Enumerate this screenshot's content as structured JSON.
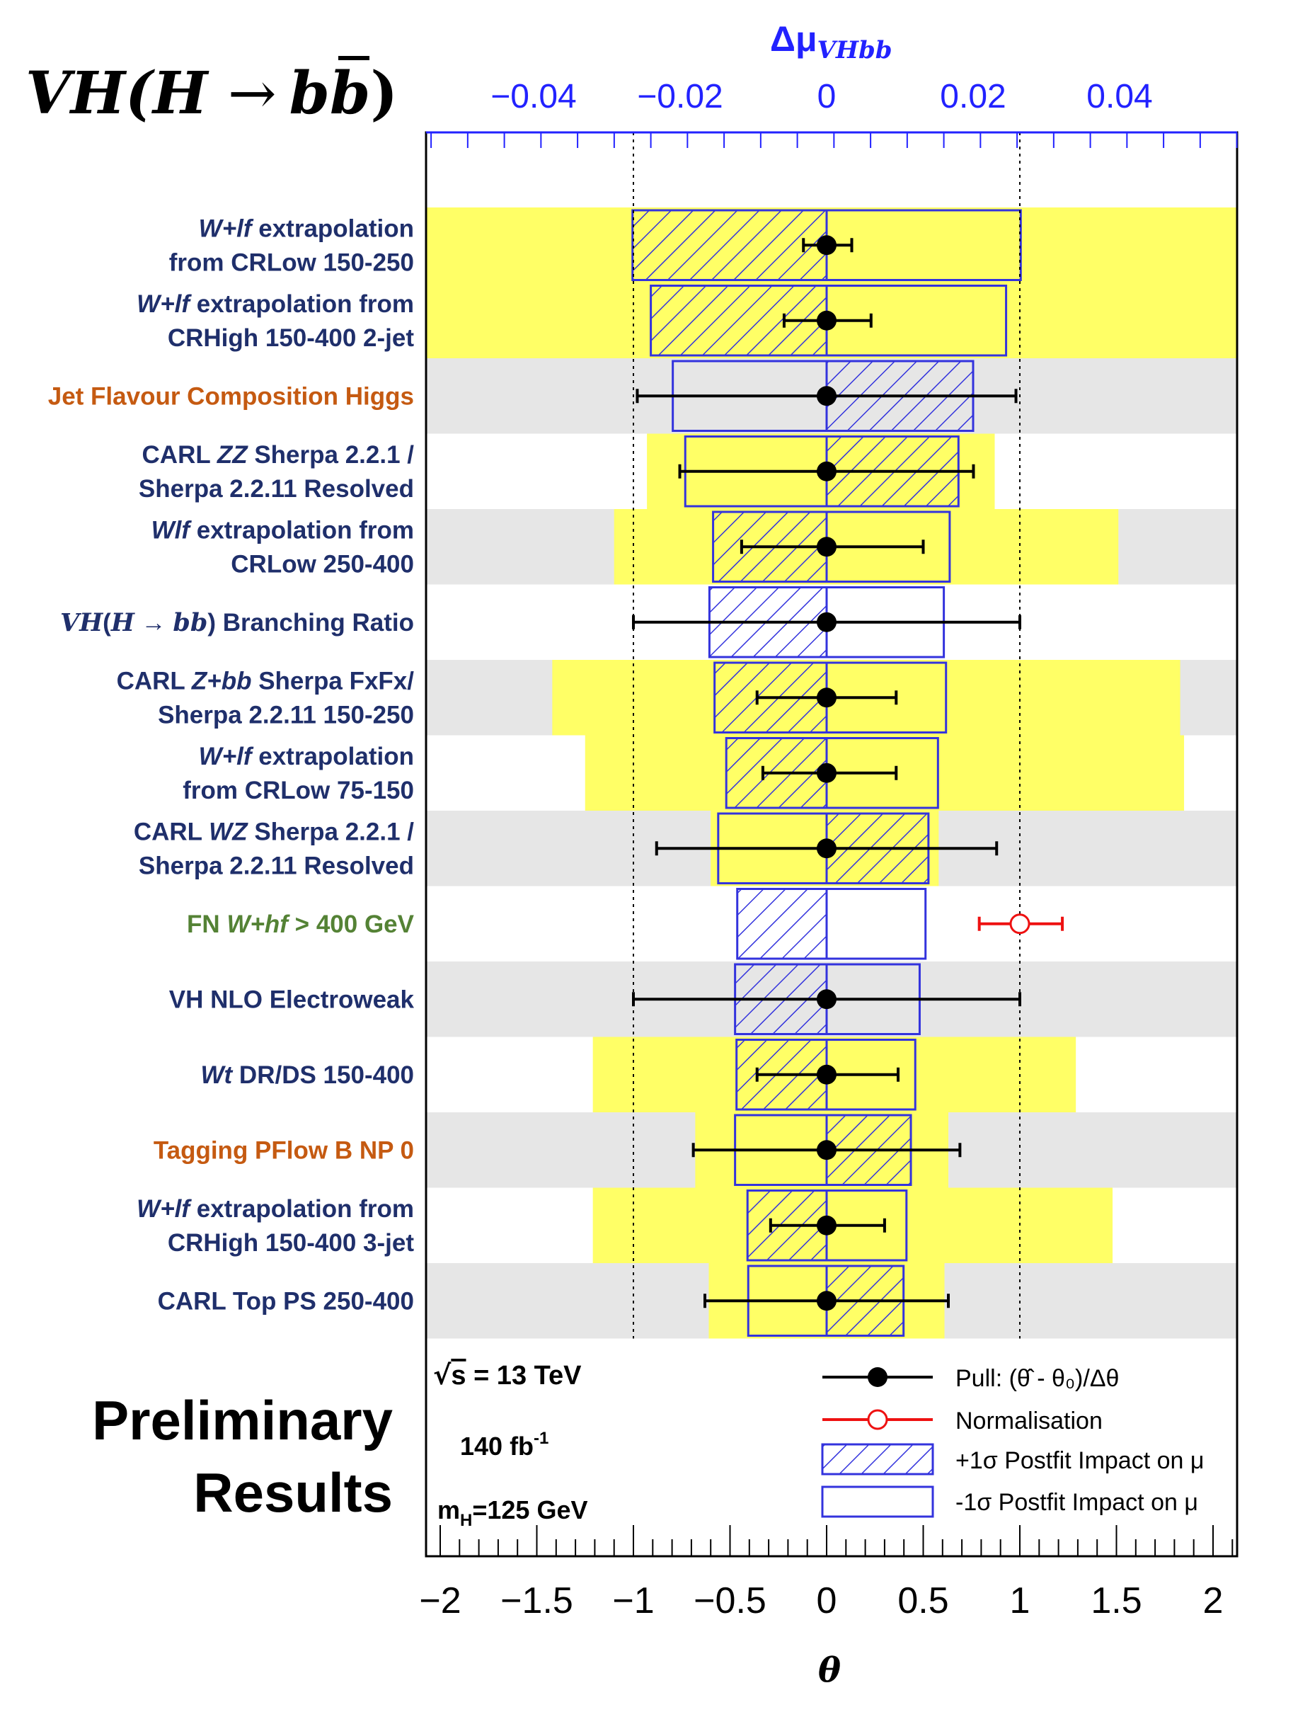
{
  "header": {
    "title_main": "VH(H ",
    "title_arrow": "→",
    "title_b1": "b",
    "title_b2": "b",
    "title_close": ")"
  },
  "footer_left": {
    "line1": "Preliminary",
    "line2": "Results"
  },
  "info": {
    "sqrt_s": "= 13 TeV",
    "lumi": "140  fb",
    "lumi_exp": "-1",
    "mass": "=125 GeV",
    "mass_prefix": "m",
    "mass_sub": "H"
  },
  "legend": [
    {
      "key": "pull",
      "label": "Pull: (θ̂ - θ₀)/Δθ"
    },
    {
      "key": "norm",
      "label": "Normalisation"
    },
    {
      "key": "plus",
      "label": "+1σ Postfit Impact on μ"
    },
    {
      "key": "minus",
      "label": "-1σ Postfit Impact on μ"
    }
  ],
  "colors": {
    "band_yellow": "#ffff66",
    "band_gray": "#e6e6e6",
    "box_blue": "#3333dd",
    "axis_top": "#2222ff",
    "pull_black": "#000000",
    "norm_red": "#ee1111",
    "label_navy": "#1f2f6b",
    "label_orange": "#c55a11",
    "label_green": "#548235"
  },
  "chart_data": {
    "type": "ranking",
    "xlabel": "θ",
    "top_axis_label": "Δμ",
    "top_axis_label_sub": "VHbb",
    "xlim": [
      -2.0,
      2.1
    ],
    "top_xlim": [
      -0.0544,
      0.0571
    ],
    "x_ticks": [
      -2,
      -1.5,
      -1,
      -0.5,
      0,
      0.5,
      1,
      1.5,
      2
    ],
    "x_tick_labels": [
      "−2",
      "−1.5",
      "−1",
      "−0.5",
      "0",
      "0.5",
      "1",
      "1.5",
      "2"
    ],
    "top_ticks": [
      -0.04,
      -0.02,
      0,
      0.02,
      0.04
    ],
    "top_tick_labels": [
      "−0.04",
      "−0.02",
      "0",
      "0.02",
      "0.04"
    ],
    "reference_lines": [
      -1,
      1
    ],
    "rows": [
      {
        "label": [
          "<i>W+lf</i> extrapolation",
          "from CRLow 150-250"
        ],
        "color": "navy",
        "band": "yellow",
        "constraint": [
          -2.2,
          2.2
        ],
        "pull": 0.0,
        "pull_err": [
          -0.12,
          0.13
        ],
        "impact_plus": -0.0265,
        "impact_minus": 0.0265
      },
      {
        "label": [
          "<i>W+lf</i> extrapolation from",
          "CRHigh 150-400 2-jet"
        ],
        "color": "navy",
        "band": "yellow",
        "constraint": [
          -2.2,
          2.2
        ],
        "pull": 0.0,
        "pull_err": [
          -0.22,
          0.23
        ],
        "impact_plus": -0.024,
        "impact_minus": 0.0245
      },
      {
        "label": [
          "Jet Flavour Composition Higgs"
        ],
        "color": "orange",
        "band": null,
        "constraint": null,
        "pull": 0.0,
        "pull_err": [
          -0.98,
          0.98
        ],
        "impact_plus": 0.02,
        "impact_minus": -0.021
      },
      {
        "label": [
          "CARL <i>ZZ</i> Sherpa 2.2.1 /",
          "Sherpa 2.2.11 Resolved"
        ],
        "color": "navy",
        "band": "yellow",
        "constraint": [
          -0.93,
          0.87
        ],
        "pull": 0.0,
        "pull_err": [
          -0.76,
          0.76
        ],
        "impact_plus": 0.018,
        "impact_minus": -0.0193
      },
      {
        "label": [
          "<i>Wlf</i> extrapolation from",
          "CRLow 250-400"
        ],
        "color": "navy",
        "band": "yellow",
        "constraint": [
          -1.1,
          1.51
        ],
        "pull": 0.0,
        "pull_err": [
          -0.44,
          0.5
        ],
        "impact_plus": -0.0155,
        "impact_minus": 0.0168
      },
      {
        "label": [
          "<b><i>VH</i></b>(<b><i>H</i></b> → <b><i>bb</i></b>) Branching Ratio"
        ],
        "color": "navy",
        "band": null,
        "constraint": null,
        "pull": 0.0,
        "pull_err": [
          -1.0,
          1.0
        ],
        "impact_plus": -0.016,
        "impact_minus": 0.016
      },
      {
        "label": [
          "CARL <i>Z+bb</i> Sherpa FxFx/",
          "Sherpa 2.2.11 150-250"
        ],
        "color": "navy",
        "band": "yellow",
        "constraint": [
          -1.42,
          1.83
        ],
        "pull": 0.0,
        "pull_err": [
          -0.36,
          0.36
        ],
        "impact_plus": -0.0153,
        "impact_minus": 0.0163
      },
      {
        "label": [
          "<i>W+lf</i> extrapolation",
          "from CRLow 75-150"
        ],
        "color": "navy",
        "band": "yellow",
        "constraint": [
          -1.25,
          1.85
        ],
        "pull": 0.0,
        "pull_err": [
          -0.33,
          0.36
        ],
        "impact_plus": -0.0137,
        "impact_minus": 0.0152
      },
      {
        "label": [
          "CARL <i>WZ</i> Sherpa 2.2.1 /",
          "Sherpa 2.2.11 Resolved"
        ],
        "color": "navy",
        "band": "yellow",
        "constraint": [
          -0.6,
          0.58
        ],
        "pull": 0.0,
        "pull_err": [
          -0.88,
          0.88
        ],
        "impact_plus": 0.0139,
        "impact_minus": -0.0148
      },
      {
        "label": [
          "FN <i>W+hf</i> > 400 GeV"
        ],
        "color": "green",
        "band": null,
        "constraint": null,
        "pull": null,
        "pull_err": null,
        "norm": 1.0,
        "norm_err": [
          -0.21,
          0.22
        ],
        "impact_plus": -0.0122,
        "impact_minus": 0.0135
      },
      {
        "label": [
          "VH NLO Electroweak"
        ],
        "color": "navy",
        "band": null,
        "constraint": null,
        "pull": 0.0,
        "pull_err": [
          -1.0,
          1.0
        ],
        "impact_plus": -0.0125,
        "impact_minus": 0.0127
      },
      {
        "label": [
          "<i>Wt</i> DR/DS 150-400"
        ],
        "color": "navy",
        "band": "yellow",
        "constraint": [
          -1.21,
          1.29
        ],
        "pull": 0.0,
        "pull_err": [
          -0.36,
          0.37
        ],
        "impact_plus": -0.0123,
        "impact_minus": 0.0121
      },
      {
        "label": [
          "Tagging PFlow B NP 0"
        ],
        "color": "orange",
        "band": "yellow",
        "constraint": [
          -0.68,
          0.63
        ],
        "pull": 0.0,
        "pull_err": [
          -0.69,
          0.69
        ],
        "impact_plus": 0.0115,
        "impact_minus": -0.0125
      },
      {
        "label": [
          "<i>W+lf</i> extrapolation from",
          "CRHigh 150-400 3-jet"
        ],
        "color": "navy",
        "band": "yellow",
        "constraint": [
          -1.21,
          1.48
        ],
        "pull": 0.0,
        "pull_err": [
          -0.29,
          0.3
        ],
        "impact_plus": -0.0108,
        "impact_minus": 0.0109
      },
      {
        "label": [
          "CARL Top PS 250-400"
        ],
        "color": "navy",
        "band": "yellow",
        "constraint": [
          -0.61,
          0.61
        ],
        "pull": 0.0,
        "pull_err": [
          -0.63,
          0.63
        ],
        "impact_plus": 0.0105,
        "impact_minus": -0.0107
      }
    ]
  }
}
